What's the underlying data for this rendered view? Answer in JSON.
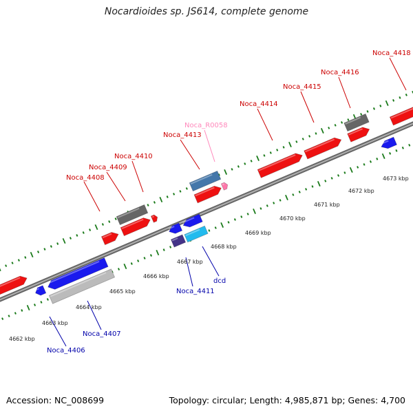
{
  "title": "Nocardioides sp. JS614, complete genome",
  "footer": {
    "accession": "Accession: NC_008699",
    "summary": "Topology: circular; Length: 4,985,871 bp; Genes: 4,700"
  },
  "colors": {
    "forward_gene": "#ee1111",
    "reverse_gene": "#1a1aee",
    "forward_label": "#cc0000",
    "reverse_label": "#0000aa",
    "rna_label": "#ff88bb",
    "backbone": "#888888",
    "tick": "#1a7a1a"
  },
  "scale": {
    "start_kbp": 4662,
    "end_kbp": 4673,
    "unit": "kbp",
    "labels": [
      "4662 kbp",
      "4663 kbp",
      "4664 kbp",
      "4665 kbp",
      "4666 kbp",
      "4667 kbp",
      "4668 kbp",
      "4669 kbp",
      "4670 kbp",
      "4671 kbp",
      "4672 kbp",
      "4673 kbp"
    ]
  },
  "forward_labels": [
    "Noca_4408",
    "Noca_4409",
    "Noca_4410",
    "Noca_4413",
    "Noca_R0058",
    "Noca_4414",
    "Noca_4415",
    "Noca_4416",
    "Noca_4418"
  ],
  "reverse_labels": [
    "Noca_4406",
    "Noca_4407",
    "Noca_4411",
    "dcd"
  ]
}
